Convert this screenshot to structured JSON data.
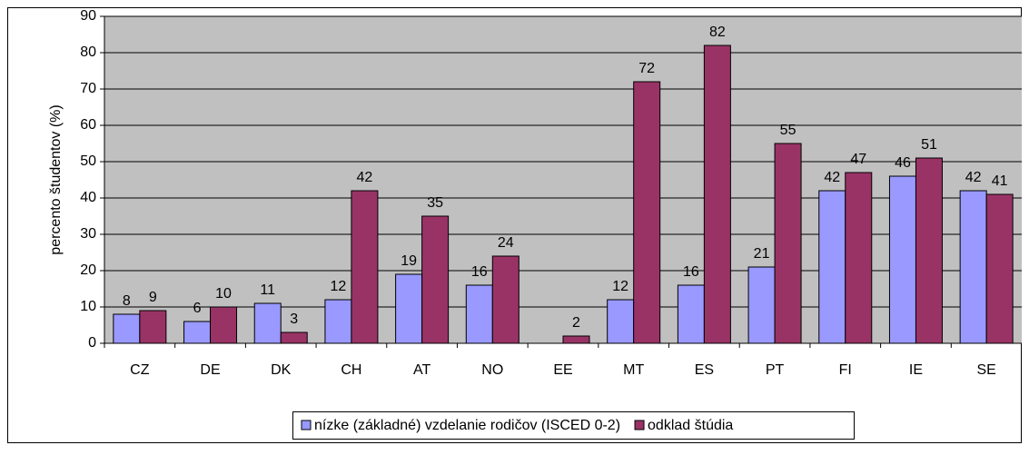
{
  "chart_data": {
    "type": "bar",
    "y_label": "percento študentov (%)",
    "categories": [
      "CZ",
      "DE",
      "DK",
      "CH",
      "AT",
      "NO",
      "EE",
      "MT",
      "ES",
      "PT",
      "FI",
      "IE",
      "SE"
    ],
    "series": [
      {
        "name": "nízke (základné) vzdelanie rodičov (ISCED 0-2)",
        "color": "#9999ff",
        "values": [
          8,
          6,
          11,
          12,
          19,
          16,
          null,
          12,
          16,
          21,
          42,
          46,
          42
        ]
      },
      {
        "name": "odklad štúdia",
        "color": "#993366",
        "values": [
          9,
          10,
          3,
          42,
          35,
          24,
          2,
          72,
          82,
          55,
          47,
          51,
          41
        ]
      }
    ],
    "ylim": [
      0,
      90
    ],
    "yticks": [
      0,
      10,
      20,
      30,
      40,
      50,
      60,
      70,
      80,
      90
    ],
    "grid": true,
    "legend": "bottom"
  }
}
